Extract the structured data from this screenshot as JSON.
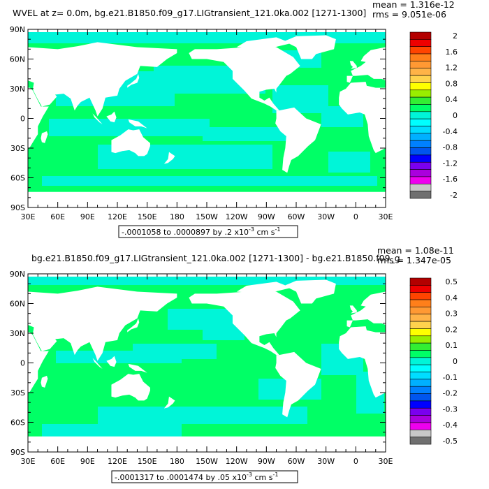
{
  "panels": [
    {
      "title_left": "WVEL at z=    0.0m, bg.e21.B1850.f09_g17.LIGtransient_121.0ka.002 [1271-1300]",
      "mean": "mean = 1.316e-12",
      "rms": "rms = 9.051e-06",
      "range_text": "-.0001058 to .0000897 by .2 x10",
      "range_exp": "-3",
      "range_units": " cm s",
      "range_units_exp": "-1",
      "y_ticks": [
        "90N",
        "60N",
        "30N",
        "0",
        "30S",
        "60S",
        "90S"
      ],
      "x_ticks": [
        "30E",
        "60E",
        "90E",
        "120E",
        "150E",
        "180",
        "150W",
        "120W",
        "90W",
        "60W",
        "30W",
        "0",
        "30E"
      ],
      "colorbar_labels": [
        "2",
        "1.6",
        "1.2",
        "0.8",
        "0.4",
        "0",
        "-0.4",
        "-0.8",
        "-1.2",
        "-1.6",
        "-2"
      ]
    },
    {
      "title_left": "bg.e21.B1850.f09_g17.LIGtransient_121.0ka.002 [1271-1300] - bg.e21.B1850.f09_g",
      "mean": "mean = 1.08e-11",
      "rms": "rms = 1.347e-05",
      "range_text": "-.0001317 to .0001474 by .05 x10",
      "range_exp": "-3",
      "range_units": " cm s",
      "range_units_exp": "-1",
      "y_ticks": [
        "90N",
        "60N",
        "30N",
        "0",
        "30S",
        "60S",
        "90S"
      ],
      "x_ticks": [
        "30E",
        "60E",
        "90E",
        "120E",
        "150E",
        "180",
        "150W",
        "120W",
        "90W",
        "60W",
        "30W",
        "0",
        "30E"
      ],
      "colorbar_labels": [
        "0.5",
        "0.4",
        "0.3",
        "0.2",
        "0.1",
        "0",
        "-0.1",
        "-0.2",
        "-0.3",
        "-0.4",
        "-0.5"
      ]
    }
  ],
  "colors": {
    "ocean_main": "#00ff66",
    "ocean_alt": "#00f5d8",
    "land": "#ffffff",
    "colorbar": [
      "#b30000",
      "#ee0000",
      "#ff4400",
      "#ff7f1a",
      "#ff9933",
      "#ffb347",
      "#ffd24d",
      "#ffff00",
      "#99ee00",
      "#33ee33",
      "#00ff66",
      "#00f5d8",
      "#00ffff",
      "#00ddff",
      "#00b0ff",
      "#0080ff",
      "#0055ee",
      "#0000ff",
      "#7a00ee",
      "#aa00dd",
      "#ee00ee",
      "#c8c8c8",
      "#707070"
    ]
  }
}
